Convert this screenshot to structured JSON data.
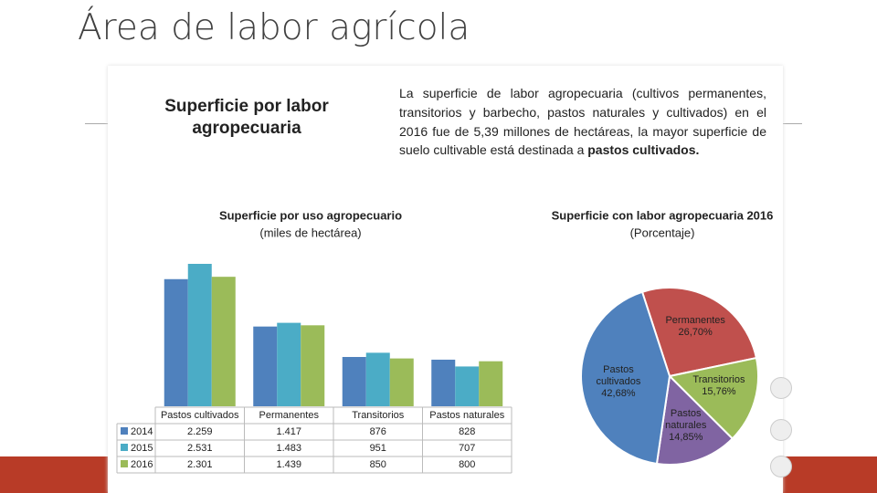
{
  "slide": {
    "title": "Área de labor agrícola",
    "heading": "Superficie por labor agropecuaria",
    "paragraph": "La superficie de labor agropecuaria (cultivos permanentes, transitorios y barbecho, pastos naturales y cultivados) en el 2016 fue de 5,39 millones de hectáreas, la mayor superficie de suelo cultivable está destinada a",
    "paragraph_bold": "pastos cultivados."
  },
  "chart_data": [
    {
      "type": "bar",
      "title": "Superficie por uso agropecuario",
      "subtitle": "(miles de hectárea)",
      "categories": [
        "Pastos cultivados",
        "Permanentes",
        "Transitorios",
        "Pastos naturales"
      ],
      "series": [
        {
          "name": "2014",
          "color": "#4f81bd",
          "values": [
            2259,
            1417,
            876,
            828
          ],
          "value_labels": [
            "2.259",
            "1.417",
            "876",
            "828"
          ]
        },
        {
          "name": "2015",
          "color": "#4bacc6",
          "values": [
            2531,
            1483,
            951,
            707
          ],
          "value_labels": [
            "2.531",
            "1.483",
            "951",
            "707"
          ]
        },
        {
          "name": "2016",
          "color": "#9bbb59",
          "values": [
            2301,
            1439,
            850,
            800
          ],
          "value_labels": [
            "2.301",
            "1.439",
            "850",
            "800"
          ]
        }
      ]
    },
    {
      "type": "pie",
      "title": "Superficie con labor agropecuaria 2016",
      "subtitle": "(Porcentaje)",
      "categories": [
        "Permanentes",
        "Transitorios",
        "Pastos naturales",
        "Pastos cultivados"
      ],
      "values": [
        26.7,
        15.76,
        14.85,
        42.68
      ],
      "value_labels": [
        "26,70%",
        "15,76%",
        "14,85%",
        "42,68%"
      ],
      "colors": [
        "#c0504d",
        "#9bbb59",
        "#8064a2",
        "#4f81bd"
      ]
    }
  ]
}
